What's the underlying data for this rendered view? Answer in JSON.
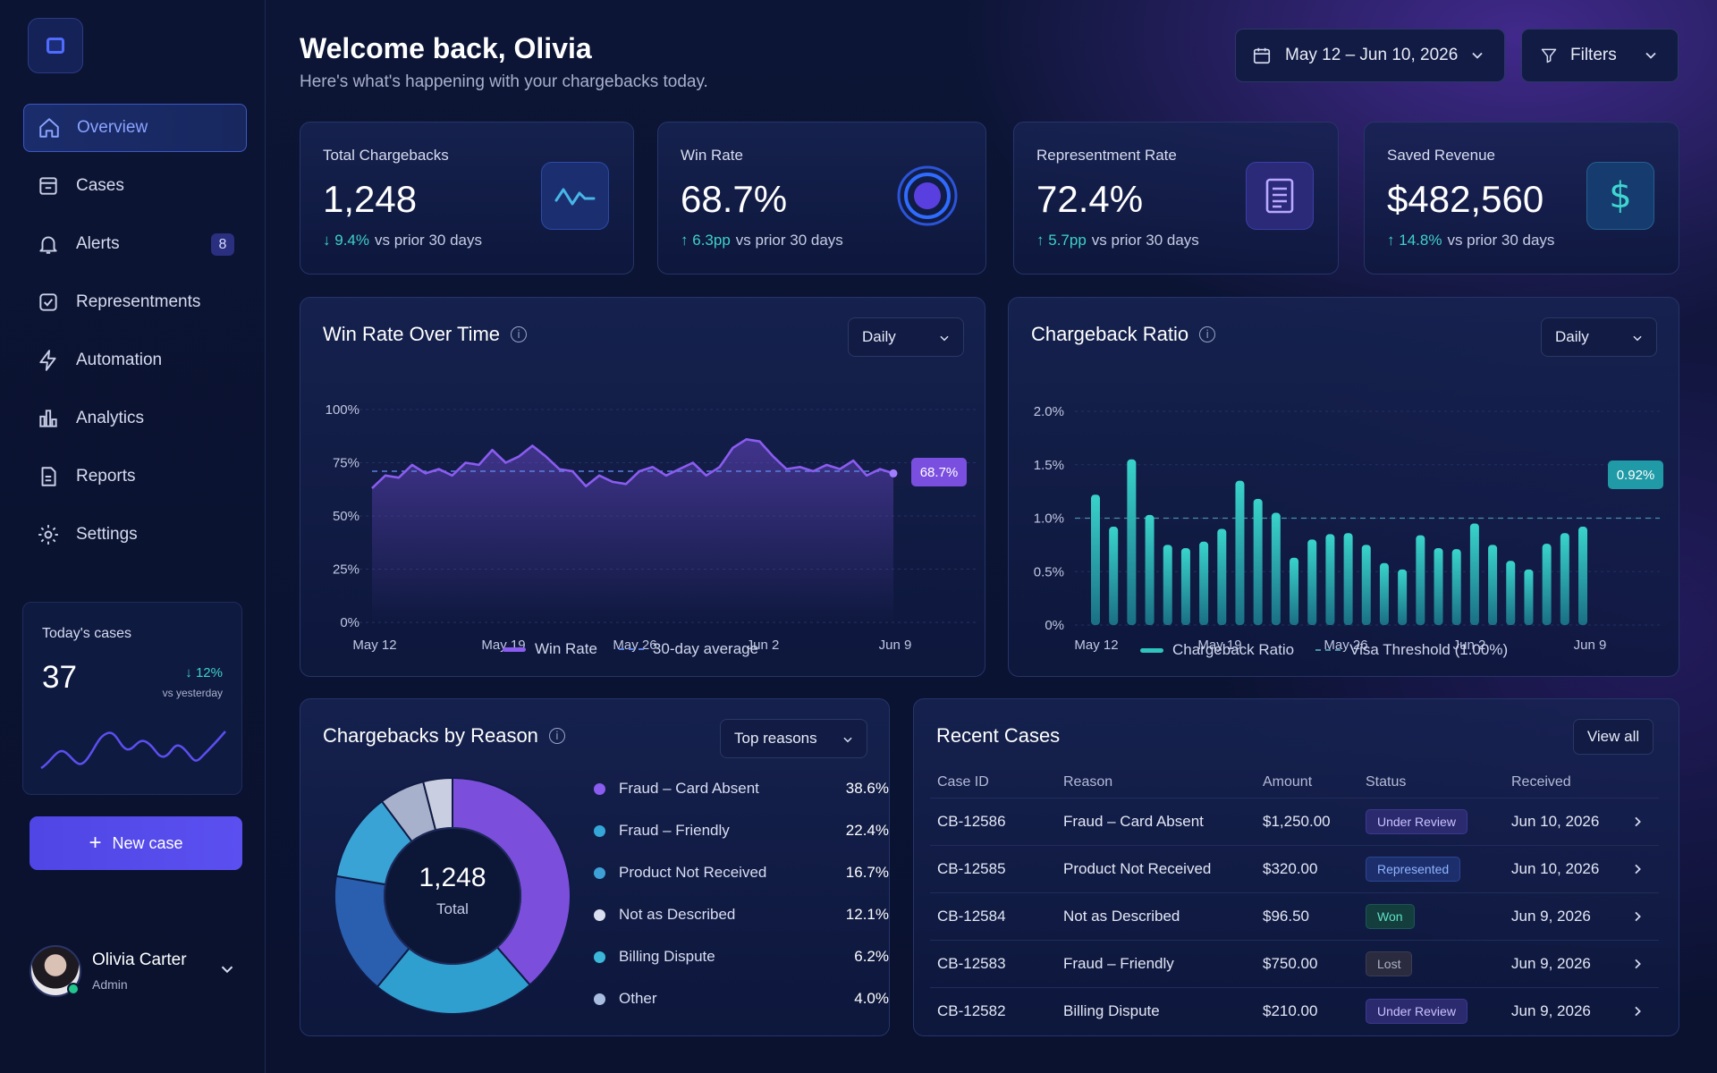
{
  "sidebar": {
    "nav": [
      {
        "label": "Overview",
        "icon": "home-icon",
        "active": true
      },
      {
        "label": "Cases",
        "icon": "cases-icon"
      },
      {
        "label": "Alerts",
        "icon": "bell-icon",
        "badge": "8"
      },
      {
        "label": "Representments",
        "icon": "check-square-icon"
      },
      {
        "label": "Automation",
        "icon": "bolt-icon"
      },
      {
        "label": "Analytics",
        "icon": "bar-chart-icon"
      },
      {
        "label": "Reports",
        "icon": "report-icon"
      },
      {
        "label": "Settings",
        "icon": "gear-icon"
      }
    ],
    "today": {
      "label": "Today's cases",
      "value": "37",
      "change": "12%",
      "change_sub": "vs yesterday"
    },
    "new_case": "New case",
    "user": {
      "name": "Olivia Carter",
      "role": "Admin"
    }
  },
  "header": {
    "title": "Welcome back, Olivia",
    "subtitle": "Here's what's happening with your chargebacks today.",
    "date_range": "May 12 – Jun 10, 2026",
    "filters": "Filters"
  },
  "kpis": [
    {
      "label": "Total Chargebacks",
      "value": "1,248",
      "change": "9.4%",
      "direction": "down",
      "compare": "vs prior 30 days",
      "icon": "activity-icon"
    },
    {
      "label": "Win Rate",
      "value": "68.7%",
      "change": "6.3pp",
      "direction": "up",
      "compare": "vs prior 30 days",
      "icon": "target-icon"
    },
    {
      "label": "Representment Rate",
      "value": "72.4%",
      "change": "5.7pp",
      "direction": "up",
      "compare": "vs prior 30 days",
      "icon": "document-icon"
    },
    {
      "label": "Saved Revenue",
      "value": "$482,560",
      "change": "14.8%",
      "direction": "up",
      "compare": "vs prior 30 days",
      "icon": "dollar-icon"
    }
  ],
  "win_rate_panel": {
    "title": "Win Rate Over Time",
    "period": "Daily",
    "current": "68.7%",
    "legend_series": "Win Rate",
    "legend_avg": "30-day average"
  },
  "ratio_panel": {
    "title": "Chargeback Ratio",
    "period": "Daily",
    "current": "0.92%",
    "legend_series": "Chargeback Ratio",
    "legend_threshold": "Visa Threshold (1.00%)"
  },
  "reasons_panel": {
    "title": "Chargebacks by Reason",
    "filter": "Top reasons",
    "total_value": "1,248",
    "total_label": "Total"
  },
  "recent_cases": {
    "title": "Recent Cases",
    "view_all": "View all",
    "columns": [
      "Case ID",
      "Reason",
      "Amount",
      "Status",
      "Received"
    ],
    "rows": [
      {
        "id": "CB-12586",
        "reason": "Fraud – Card Absent",
        "amount": "$1,250.00",
        "status": "Under Review",
        "status_type": "review",
        "received": "Jun 10, 2026"
      },
      {
        "id": "CB-12585",
        "reason": "Product Not Received",
        "amount": "$320.00",
        "status": "Represented",
        "status_type": "repr",
        "received": "Jun 10, 2026"
      },
      {
        "id": "CB-12584",
        "reason": "Not as Described",
        "amount": "$96.50",
        "status": "Won",
        "status_type": "won",
        "received": "Jun 9, 2026"
      },
      {
        "id": "CB-12583",
        "reason": "Fraud – Friendly",
        "amount": "$750.00",
        "status": "Lost",
        "status_type": "lost",
        "received": "Jun 9, 2026"
      },
      {
        "id": "CB-12582",
        "reason": "Billing Dispute",
        "amount": "$210.00",
        "status": "Under Review",
        "status_type": "review",
        "received": "Jun 9, 2026"
      }
    ]
  },
  "colors": {
    "accent": "#5b4ff0",
    "purple": "#8a5cf0",
    "teal": "#2fc4bd",
    "up": "#3ed1c8"
  },
  "chart_data": [
    {
      "type": "line",
      "title": "Win Rate Over Time",
      "x_ticks": [
        "May 12",
        "May 19",
        "May 26",
        "Jun 2",
        "Jun 9"
      ],
      "y_ticks": [
        "0%",
        "25%",
        "50%",
        "75%",
        "100%"
      ],
      "ylim": [
        0,
        100
      ],
      "series": [
        {
          "name": "Win Rate",
          "values": [
            63,
            69,
            68,
            74,
            70,
            72,
            69,
            75,
            74,
            81,
            75,
            78,
            83,
            78,
            72,
            71,
            64,
            69,
            66,
            65,
            71,
            73,
            69,
            72,
            75,
            69,
            73,
            82,
            86,
            85,
            78,
            72,
            73,
            71,
            74,
            72,
            76,
            69,
            72,
            70
          ]
        }
      ],
      "average": {
        "name": "30-day average",
        "value": 71
      }
    },
    {
      "type": "bar",
      "title": "Chargeback Ratio",
      "x_ticks": [
        "May 12",
        "May 19",
        "May 26",
        "Jun 2",
        "Jun 9"
      ],
      "y_ticks": [
        "0%",
        "0.5%",
        "1.0%",
        "1.5%",
        "2.0%"
      ],
      "ylim": [
        0,
        2.0
      ],
      "series": [
        {
          "name": "Chargeback Ratio",
          "values": [
            1.22,
            0.92,
            1.55,
            1.03,
            0.75,
            0.72,
            0.78,
            0.9,
            1.35,
            1.18,
            1.05,
            0.63,
            0.8,
            0.85,
            0.86,
            0.75,
            0.58,
            0.52,
            0.84,
            0.72,
            0.71,
            0.95,
            0.75,
            0.6,
            0.52,
            0.76,
            0.86,
            0.92
          ]
        }
      ],
      "threshold": {
        "name": "Visa Threshold (1.00%)",
        "value": 1.0
      }
    },
    {
      "type": "pie",
      "title": "Chargebacks by Reason",
      "slices": [
        {
          "label": "Fraud – Card Absent",
          "value": 38.6,
          "display": "38.6%",
          "color": "#7b4fdc"
        },
        {
          "label": "Fraud – Friendly",
          "value": 22.4,
          "display": "22.4%",
          "color": "#2f9fcf"
        },
        {
          "label": "Product Not Received",
          "value": 16.7,
          "display": "16.7%",
          "color": "#2a5fb0"
        },
        {
          "label": "Not as Described",
          "value": 12.1,
          "display": "12.1%",
          "color": "#3aa3d6"
        },
        {
          "label": "Billing Dispute",
          "value": 6.2,
          "display": "6.2%",
          "color": "#a8b1cc"
        },
        {
          "label": "Other",
          "value": 4.0,
          "display": "4.0%",
          "color": "#c9cfe0"
        }
      ],
      "legend_dots": [
        "#8a5cf0",
        "#35a6d8",
        "#3da0d6",
        "#d9def0",
        "#3bb8d8",
        "#a8bde0"
      ]
    }
  ]
}
